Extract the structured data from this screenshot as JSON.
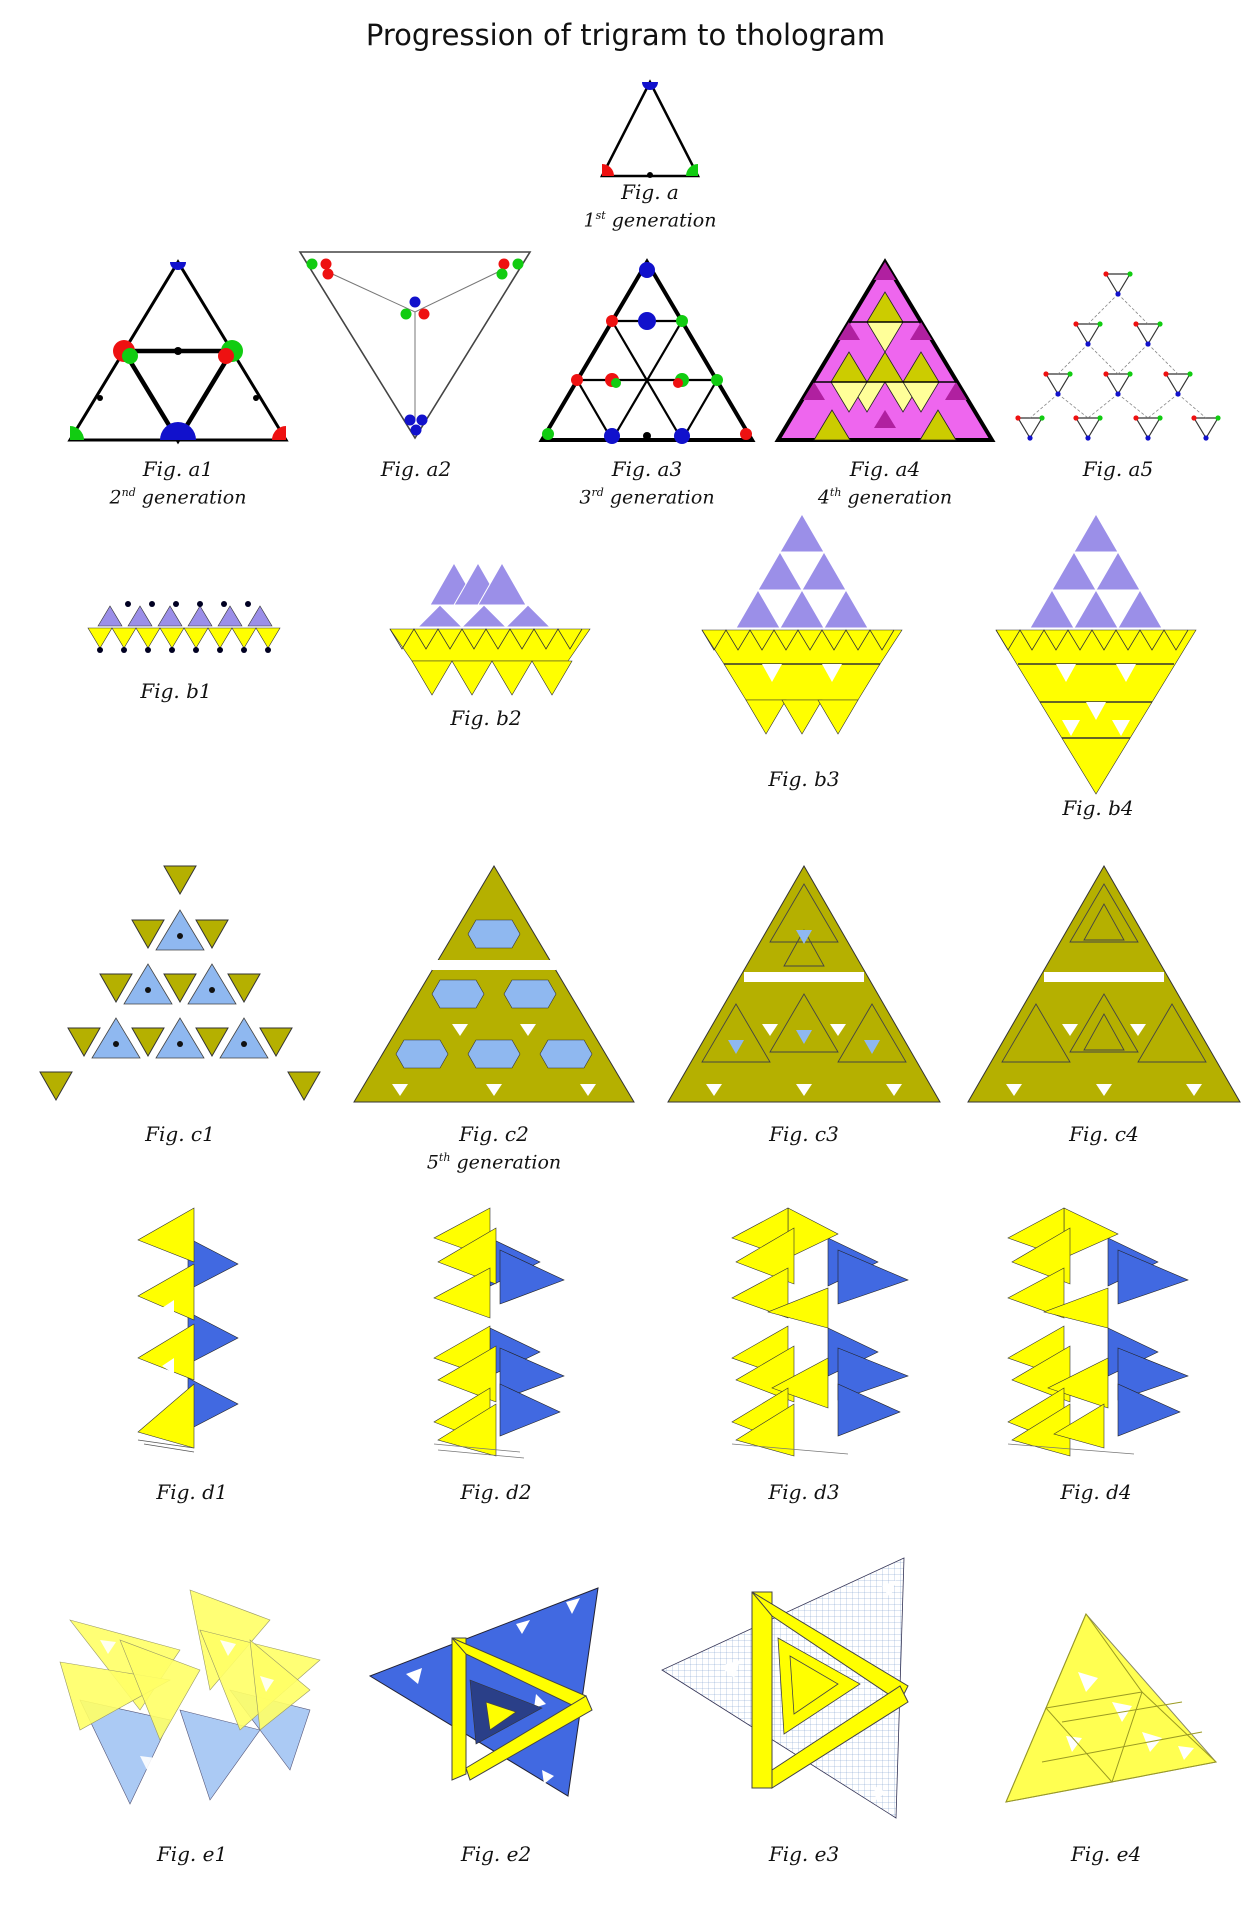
{
  "title": "Progression of trigram to thologram",
  "generation_word": "generation",
  "captions": {
    "a": "Fig. a",
    "a1": "Fig. a1",
    "a2": "Fig. a2",
    "a3": "Fig. a3",
    "a4": "Fig. a4",
    "a5": "Fig. a5",
    "b1": "Fig. b1",
    "b2": "Fig. b2",
    "b3": "Fig. b3",
    "b4": "Fig. b4",
    "c1": "Fig. c1",
    "c2": "Fig. c2",
    "c3": "Fig. c3",
    "c4": "Fig. c4",
    "d1": "Fig. d1",
    "d2": "Fig. d2",
    "d3": "Fig. d3",
    "d4": "Fig. d4",
    "e1": "Fig. e1",
    "e2": "Fig. e2",
    "e3": "Fig. e3",
    "e4": "Fig. e4"
  },
  "generations": {
    "g1": {
      "num": "1",
      "sup": "st"
    },
    "g2": {
      "num": "2",
      "sup": "nd"
    },
    "g3": {
      "num": "3",
      "sup": "rd"
    },
    "g4": {
      "num": "4",
      "sup": "th"
    },
    "g5": {
      "num": "5",
      "sup": "th"
    }
  },
  "colors": {
    "yellow": "#ffff00",
    "olive": "#b5b000",
    "blue": "#4169e1",
    "light_blue": "#8fb8f0",
    "lavender": "#9b8fe8",
    "magenta": "#ee66ee",
    "purple": "#b020a0",
    "red": "#ee1111",
    "green": "#11cc11",
    "dark_blue": "#1111cc"
  }
}
